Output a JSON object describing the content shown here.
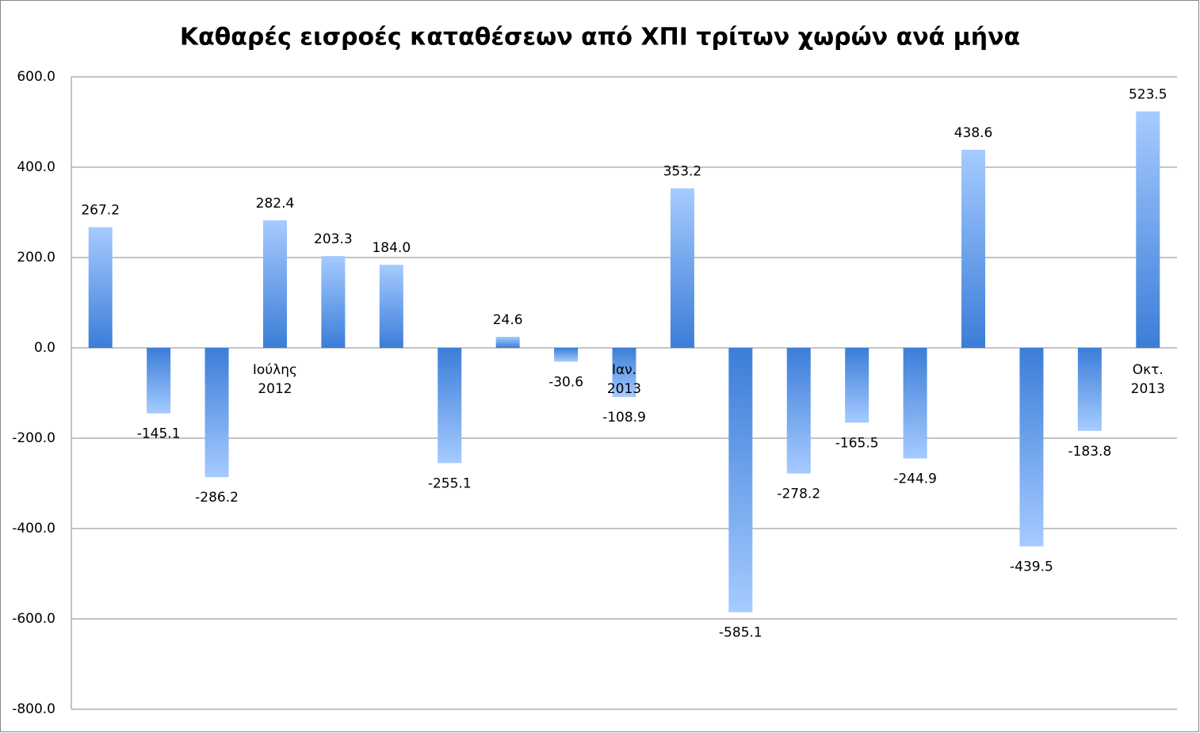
{
  "chart_data": {
    "type": "bar",
    "title": "Καθαρές εισροές καταθέσεων από ΧΠΙ τρίτων χωρών ανά μήνα",
    "categories": [
      null,
      null,
      null,
      "Ιούλης 2012",
      null,
      null,
      null,
      null,
      null,
      "Ιαν. 2013",
      null,
      null,
      null,
      null,
      null,
      null,
      null,
      null,
      "Οκτ. 2013"
    ],
    "values": [
      267.2,
      -145.1,
      -286.2,
      282.4,
      203.3,
      184.0,
      -255.1,
      24.6,
      -30.6,
      -108.9,
      353.2,
      -585.1,
      -278.2,
      -165.5,
      -244.9,
      438.6,
      -439.5,
      -183.8,
      523.5
    ],
    "value_labels": [
      "267.2",
      "-145.1",
      "-286.2",
      "282.4",
      "203.3",
      "184.0",
      "-255.1",
      "24.6",
      "-30.6",
      "-108.9",
      "353.2",
      "-585.1",
      "-278.2",
      "-165.5",
      "-244.9",
      "438.6",
      "-439.5",
      "-183.8",
      "523.5"
    ],
    "color": "#3b7dd8",
    "ylim": [
      -800,
      600
    ],
    "yticks": [
      {
        "value": -800,
        "label": "-800.0"
      },
      {
        "value": -600,
        "label": "-600.0"
      },
      {
        "value": -400,
        "label": "-400.0"
      },
      {
        "value": -200,
        "label": "-200.0"
      },
      {
        "value": 0,
        "label": "0.0"
      },
      {
        "value": 200,
        "label": "200.0"
      },
      {
        "value": 400,
        "label": "400.0"
      },
      {
        "value": 600,
        "label": "600.0"
      }
    ],
    "grid": true
  }
}
